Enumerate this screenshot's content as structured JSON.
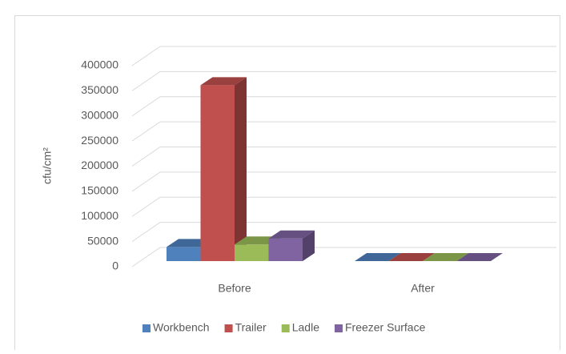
{
  "chart_data": {
    "type": "bar3d",
    "categories": [
      "Before",
      "After"
    ],
    "y_label": "cfu/cm²",
    "series": [
      {
        "name": "Workbench",
        "color": "#4f81bd",
        "values": [
          28000,
          0
        ]
      },
      {
        "name": "Trailer",
        "color": "#c0504d",
        "values": [
          350000,
          0
        ]
      },
      {
        "name": "Ladle",
        "color": "#9bbb59",
        "values": [
          33000,
          0
        ]
      },
      {
        "name": "Freezer Surface",
        "color": "#8064a2",
        "values": [
          45000,
          0
        ]
      }
    ],
    "ylim": [
      0,
      400000
    ],
    "yticks": [
      0,
      50000,
      100000,
      150000,
      200000,
      250000,
      300000,
      350000,
      400000
    ],
    "grid": true,
    "legend": "bottom"
  }
}
